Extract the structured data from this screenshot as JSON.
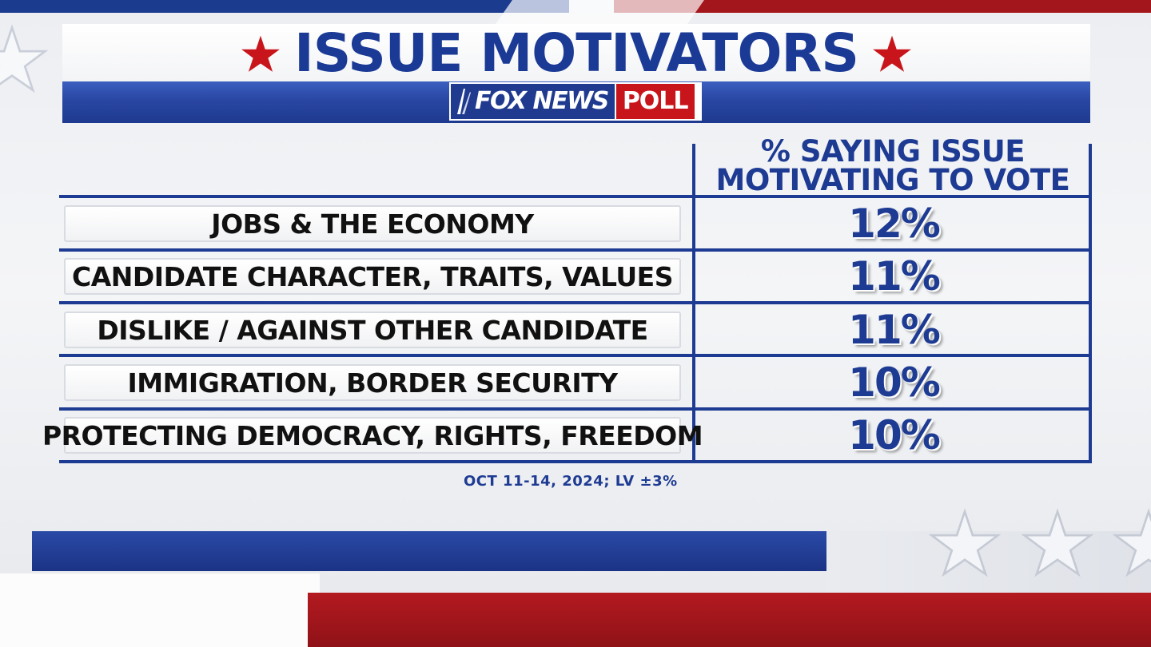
{
  "header": {
    "title": "ISSUE MOTIVATORS",
    "logo_brand": "FOX NEWS",
    "logo_poll": "POLL"
  },
  "colors": {
    "brand_blue": "#1e3b93",
    "brand_red": "#c8151b"
  },
  "table": {
    "column_header_line1": "% SAYING ISSUE",
    "column_header_line2": "MOTIVATING TO VOTE"
  },
  "footnote": "OCT 11-14, 2024; LV ±3%",
  "chart_data": {
    "type": "table",
    "title": "ISSUE MOTIVATORS",
    "column_header": "% SAYING ISSUE MOTIVATING TO VOTE",
    "categories": [
      "JOBS & THE ECONOMY",
      "CANDIDATE CHARACTER, TRAITS, VALUES",
      "DISLIKE / AGAINST OTHER CANDIDATE",
      "IMMIGRATION, BORDER SECURITY",
      "PROTECTING DEMOCRACY, RIGHTS, FREEDOM"
    ],
    "values": [
      12,
      11,
      11,
      10,
      10
    ],
    "value_labels": [
      "12%",
      "11%",
      "11%",
      "10%",
      "10%"
    ]
  }
}
